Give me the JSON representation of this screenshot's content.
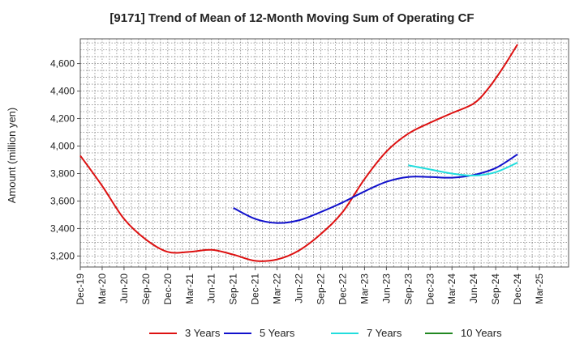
{
  "chart_data": {
    "type": "line",
    "title": "[9171]  Trend of Mean of 12-Month Moving Sum of Operating CF",
    "xlabel": "",
    "ylabel": "Amount (million yen)",
    "ylim": [
      3120,
      4780
    ],
    "yticks": [
      3200,
      3400,
      3600,
      3800,
      4000,
      4200,
      4400,
      4600
    ],
    "ytick_labels": [
      "3,200",
      "3,400",
      "3,600",
      "3,800",
      "4,000",
      "4,200",
      "4,400",
      "4,600"
    ],
    "xlim": [
      0,
      67
    ],
    "xtick_labels": [
      "Dec-19",
      "Mar-20",
      "Jun-20",
      "Sep-20",
      "Dec-20",
      "Mar-21",
      "Jun-21",
      "Sep-21",
      "Dec-21",
      "Mar-22",
      "Jun-22",
      "Sep-22",
      "Dec-22",
      "Mar-23",
      "Jun-23",
      "Sep-23",
      "Dec-23",
      "Mar-24",
      "Jun-24",
      "Sep-24",
      "Dec-24",
      "Mar-25"
    ],
    "grid": true,
    "legend_position": "bottom",
    "series": [
      {
        "name": "3 Years",
        "color": "#dd1111",
        "x": [
          0,
          3,
          6,
          9,
          12,
          15,
          18,
          21,
          24,
          27,
          30,
          33,
          36,
          39,
          42,
          45,
          48,
          51,
          54,
          56,
          58,
          60
        ],
        "y": [
          3930,
          3710,
          3470,
          3320,
          3230,
          3230,
          3245,
          3210,
          3165,
          3175,
          3240,
          3360,
          3520,
          3760,
          3960,
          4090,
          4170,
          4240,
          4310,
          4420,
          4570,
          4740
        ]
      },
      {
        "name": "5 Years",
        "color": "#1111cc",
        "x": [
          21,
          24,
          27,
          30,
          33,
          36,
          39,
          42,
          45,
          48,
          51,
          54,
          57,
          60
        ],
        "y": [
          3550,
          3470,
          3440,
          3460,
          3520,
          3590,
          3670,
          3740,
          3775,
          3775,
          3770,
          3790,
          3840,
          3940
        ]
      },
      {
        "name": "7 Years",
        "color": "#22dddd",
        "x": [
          45,
          48,
          51,
          54,
          57,
          60
        ],
        "y": [
          3860,
          3830,
          3800,
          3785,
          3810,
          3880
        ]
      },
      {
        "name": "10 Years",
        "color": "#228822",
        "x": [],
        "y": []
      }
    ]
  }
}
